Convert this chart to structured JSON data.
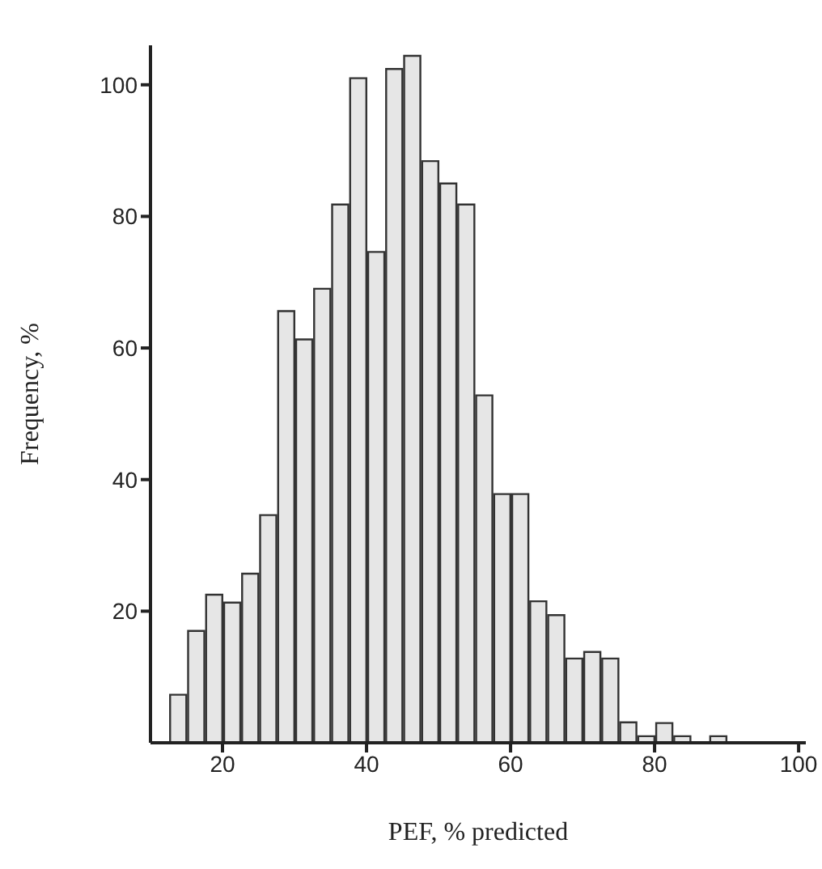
{
  "chart_data": {
    "type": "histogram",
    "xlabel": "PEF, % predicted",
    "ylabel": "Frequency, %",
    "bins": [
      12.5,
      15,
      17.5,
      20,
      22.5,
      25,
      27.5,
      30,
      32.5,
      35,
      37.5,
      40,
      42.5,
      45,
      47.5,
      50,
      52.5,
      55,
      57.5,
      60,
      62.5,
      65,
      67.5,
      70,
      72.5,
      75,
      77.5,
      80,
      82.5,
      85,
      87.5,
      90
    ],
    "values": [
      7.3,
      17,
      22.5,
      21.3,
      25.7,
      34.6,
      65.6,
      61.3,
      69,
      81.8,
      101,
      74.6,
      102.4,
      104.4,
      88.4,
      85,
      81.8,
      52.8,
      37.8,
      37.8,
      21.5,
      19.4,
      12.8,
      13.8,
      12.8,
      3.1,
      1,
      3,
      1,
      0,
      1
    ],
    "color": "#e6e6e6",
    "xlim": [
      10,
      101
    ],
    "xticks": [
      20,
      40,
      60,
      80,
      100
    ],
    "ylim": [
      0,
      106
    ],
    "yticks": [
      20,
      40,
      60,
      80,
      100
    ]
  }
}
